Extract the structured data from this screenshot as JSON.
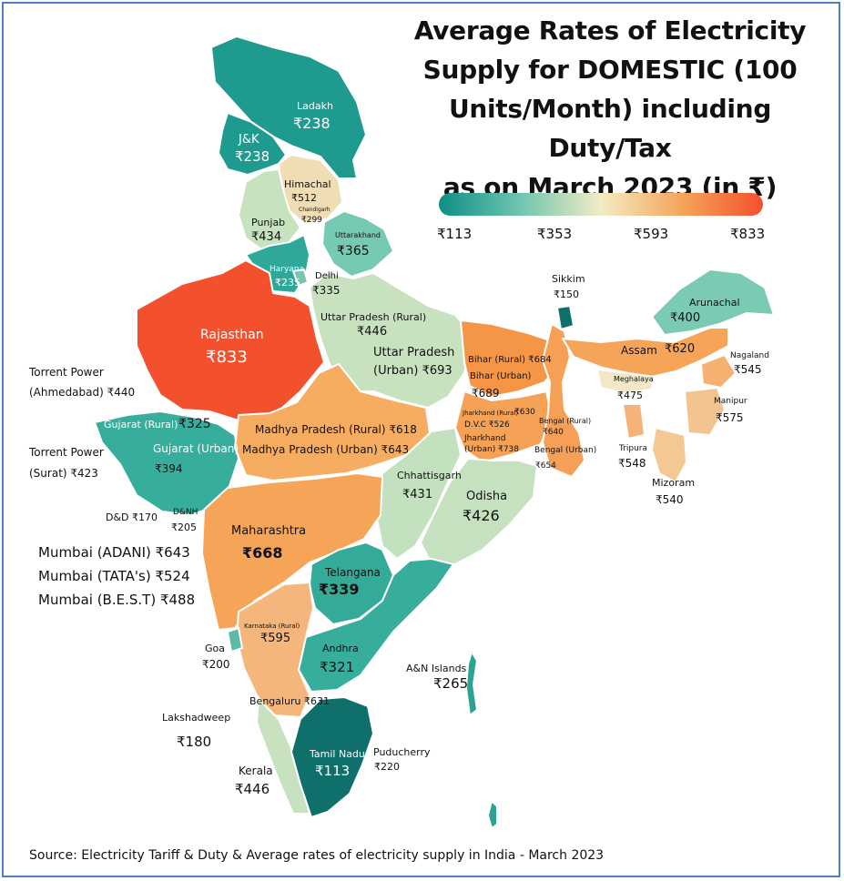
{
  "title_lines": [
    "Average Rates of Electricity",
    "Supply for DOMESTIC (100",
    "Units/Month) including Duty/Tax",
    "as on March 2023 (in ₹)"
  ],
  "legend": {
    "ticks": [
      "₹113",
      "₹353",
      "₹593",
      "₹833"
    ],
    "scale_min": 113,
    "scale_max": 833,
    "color_low": "#0f8f85",
    "color_mid": "#f3ecc4",
    "color_high": "#f3502e"
  },
  "source": "Source: Electricity Tariff & Duty & Average rates of electricity supply in India - March 2023",
  "labels": {
    "ladakh": "Ladakh",
    "ladakh_v": "₹238",
    "jk": "J&K",
    "jk_v": "₹238",
    "himachal": "Himachal",
    "himachal_v": "₹512",
    "chandigarh": "Chandigarh",
    "chandigarh_v": "₹299",
    "punjab": "Punjab",
    "punjab_v": "₹434",
    "uttarakhand": "Uttarakhand",
    "uttarakhand_v": "₹365",
    "haryana": "Haryana",
    "haryana_v": "₹235",
    "delhi": "Delhi",
    "delhi_v": "₹335",
    "sikkim": "Sikkim",
    "sikkim_v": "₹150",
    "arunachal": "Arunachal",
    "arunachal_v": "₹400",
    "rajasthan": "Rajasthan",
    "rajasthan_v": "₹833",
    "up_rural": "Uttar Pradesh (Rural)",
    "up_rural_v": "₹446",
    "up_urban": "Uttar Pradesh",
    "up_urban_2": "(Urban) ₹693",
    "assam": "Assam",
    "assam_v": "₹620",
    "nagaland": "Nagaland",
    "nagaland_v": "₹545",
    "torrent_ahd_1": "Torrent Power",
    "torrent_ahd_2": "(Ahmedabad) ₹440",
    "bihar_rural": "Bihar (Rural) ₹684",
    "bihar_urban": "Bihar (Urban)",
    "bihar_urban_v": "₹689",
    "meghalaya": "Meghalaya",
    "meghalaya_v": "₹475",
    "manipur": "Manipur",
    "manipur_v": "₹575",
    "jharkhand_rural": "Jharkhand (Rural)",
    "jharkhand_rural_v": "₹630",
    "dvc": "D.V.C ₹526",
    "bengal_rural": "Bengal (Rural)",
    "bengal_rural_v": "₹640",
    "jharkhand_urban": "Jharkhand",
    "jharkhand_urban_v": "(Urban) ₹738",
    "bengal_urban": "Bengal (Urban)",
    "bengal_urban_v": "₹654",
    "tripura": "Tripura",
    "tripura_v": "₹548",
    "mizoram": "Mizoram",
    "mizoram_v": "₹540",
    "gujarat_rural": "Gujarat (Rural)",
    "gujarat_rural_v": "₹325",
    "gujarat_urban": "Gujarat (Urban)",
    "gujarat_urban_v": "₹394",
    "torrent_surat_1": "Torrent Power",
    "torrent_surat_2": "(Surat) ₹423",
    "mp_rural": "Madhya Pradesh (Rural) ₹618",
    "mp_urban": "Madhya Pradesh (Urban) ₹643",
    "chhattisgarh": "Chhattisgarh",
    "chhattisgarh_v": "₹431",
    "odisha": "Odisha",
    "odisha_v": "₹426",
    "dd": "D&D ₹170",
    "dnh": "D&NH",
    "dnh_v": "₹205",
    "maharashtra": "Maharashtra",
    "maharashtra_v": "₹668",
    "mumbai_adani": "Mumbai (ADANI) ₹643",
    "mumbai_tata": "Mumbai (TATA's) ₹524",
    "mumbai_best": "Mumbai (B.E.S.T) ₹488",
    "telangana": "Telangana",
    "telangana_v": "₹339",
    "karnataka_rural": "Karnataka (Rural)",
    "karnataka_rural_v": "₹595",
    "goa": "Goa",
    "goa_v": "₹200",
    "andhra": "Andhra",
    "andhra_v": "₹321",
    "an_islands": "A&N Islands",
    "an_islands_v": "₹265",
    "bengaluru": "Bengaluru ₹631",
    "lakshadweep": "Lakshadweep",
    "lakshadweep_v": "₹180",
    "tamil_nadu": "Tamil Nadu",
    "tamil_nadu_v": "₹113",
    "puducherry": "Puducherry",
    "puducherry_v": "₹220",
    "kerala": "Kerala",
    "kerala_v": "₹446"
  }
}
